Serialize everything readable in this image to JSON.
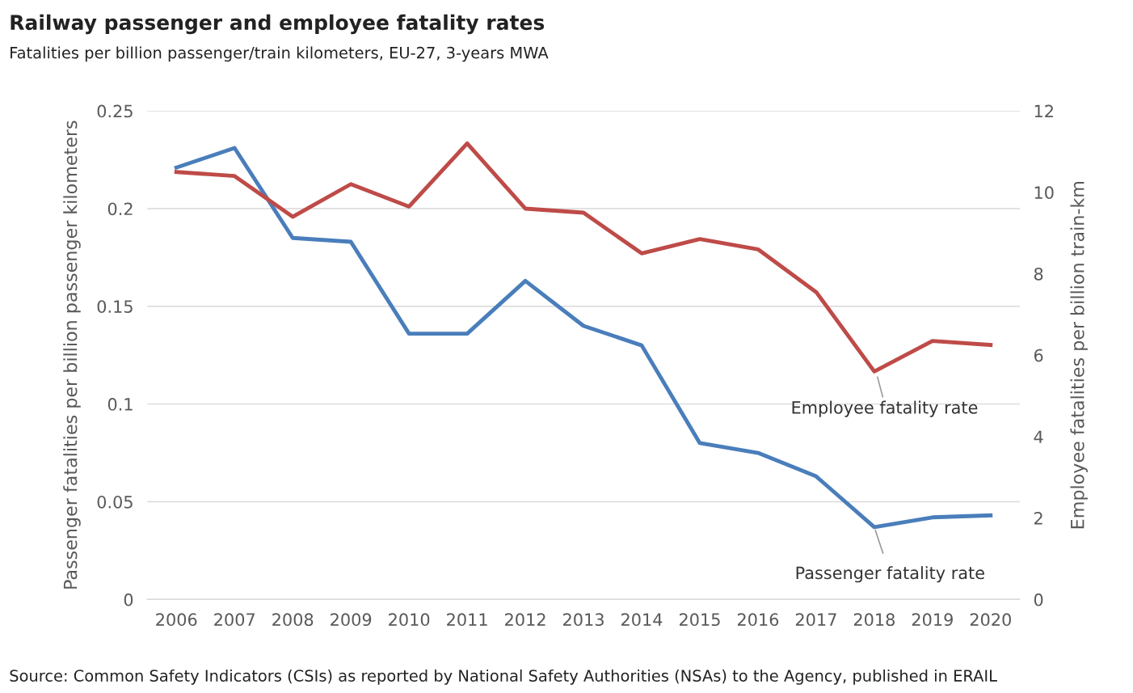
{
  "chart_data": {
    "type": "line",
    "title": "Railway passenger and employee fatality rates",
    "subtitle": "Fatalities per billion passenger/train kilometers, EU-27, 3-years MWA",
    "ylabel": "Passenger fatalities per billion passenger kilometers",
    "y2label": "Employee fatalities per billion train-km",
    "categories": [
      "2006",
      "2007",
      "2008",
      "2009",
      "2010",
      "2011",
      "2012",
      "2013",
      "2014",
      "2015",
      "2016",
      "2017",
      "2018",
      "2019",
      "2020"
    ],
    "series": [
      {
        "color": "#4a7ebb",
        "values": [
          0.221,
          0.231,
          0.185,
          0.183,
          0.136,
          0.136,
          0.163,
          0.14,
          0.13,
          0.08,
          0.075,
          0.063,
          0.037,
          0.042,
          0.043
        ]
      },
      {
        "color": "#be4b48",
        "axis": "y2",
        "values": [
          10.5,
          10.4,
          9.4,
          10.2,
          9.65,
          11.2,
          9.6,
          9.5,
          8.5,
          8.85,
          8.6,
          7.55,
          5.6,
          6.35,
          6.25
        ]
      }
    ],
    "ylim": [
      0,
      0.25
    ],
    "yticks": [
      0,
      0.05,
      0.1,
      0.15,
      0.2,
      0.25
    ],
    "y2lim": [
      0,
      12
    ],
    "y2ticks": [
      0,
      2,
      4,
      6,
      8,
      10,
      12
    ],
    "grid": "y",
    "legend": false,
    "marker": "none",
    "line_style": "solid",
    "annotations": [
      "Employee fatality rate",
      {
        "text": "Passenger fatality rate",
        "x": "2018",
        "y": 0.037
      },
      "Source: Common Safety Indicators (CSIs) as reported by National Safety Authorities (NSAs) to the Agency, published in ERAIL"
    ]
  }
}
